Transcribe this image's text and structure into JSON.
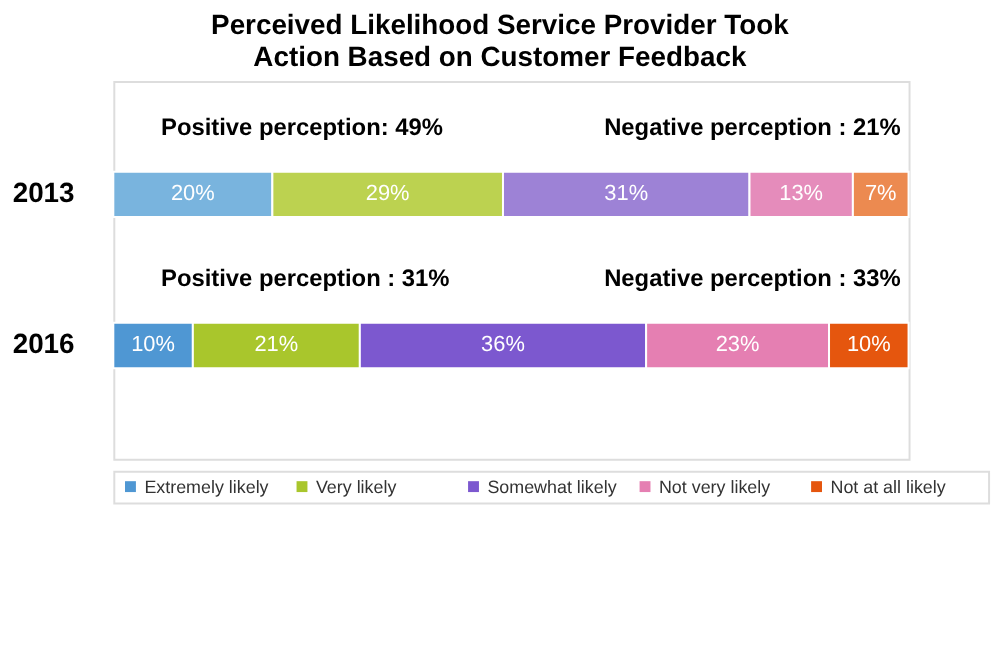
{
  "chart_data": {
    "type": "bar",
    "title": [
      "Perceived Likelihood Service Provider Took",
      "Action Based on Customer Feedback"
    ],
    "orientation": "horizontal",
    "stacked": true,
    "categories": [
      "2013",
      "2016"
    ],
    "series": [
      {
        "name": "Extremely likely",
        "color": "#4f97d3",
        "colors": [
          "#79b4de",
          "#4f97d3"
        ],
        "values": [
          20,
          10
        ],
        "value_labels": [
          "20%",
          "10%"
        ]
      },
      {
        "name": "Very likely",
        "color": "#a9c62c",
        "colors": [
          "#bcd250",
          "#a9c62c"
        ],
        "values": [
          29,
          21
        ],
        "value_labels": [
          "29%",
          "21%"
        ]
      },
      {
        "name": "Somewhat likely",
        "color": "#7c58cf",
        "colors": [
          "#9d82d6",
          "#7c58cf"
        ],
        "values": [
          31,
          36
        ],
        "value_labels": [
          "31%",
          "36%"
        ]
      },
      {
        "name": "Not very likely",
        "color": "#e57fb2",
        "colors": [
          "#e58cbb",
          "#e57fb2"
        ],
        "values": [
          13,
          23
        ],
        "value_labels": [
          "13%",
          "23%"
        ]
      },
      {
        "name": "Not at all likely",
        "color": "#e5560e",
        "colors": [
          "#ec8a50",
          "#e5560e"
        ],
        "values": [
          7,
          10
        ],
        "value_labels": [
          "7%",
          "10%"
        ]
      }
    ],
    "annotations": [
      "Positive perception: 49%",
      "Negative perception : 21%",
      "Positive perception : 31%",
      "Negative perception : 33%"
    ],
    "legend": "bottom"
  }
}
